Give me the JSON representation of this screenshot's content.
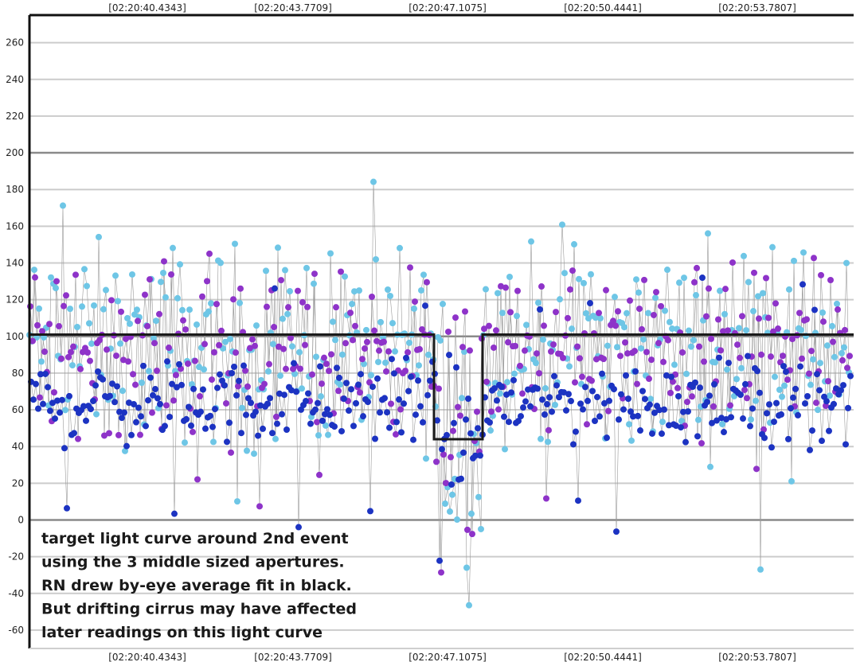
{
  "chart_data": {
    "type": "scatter",
    "title": "",
    "xlabel": "",
    "ylabel": "",
    "x_tick_labels": [
      "[02:20:40.4343]",
      "[02:20:43.7709]",
      "[02:20:47.1075]",
      "[02:20:50.4441]",
      "[02:20:53.7807]"
    ],
    "y_ticks": [
      260,
      240,
      220,
      200,
      180,
      160,
      140,
      120,
      100,
      80,
      60,
      40,
      20,
      0,
      -20,
      -40,
      -60
    ],
    "ylim": [
      -70,
      275
    ],
    "grid": true,
    "annotation": [
      "target light curve around 2nd event",
      "using the 3 middle sized apertures.",
      "RN drew by-eye average fit in black.",
      "But drifting cirrus may have affected",
      "later readings on this light curve"
    ],
    "series_colors": {
      "sky": "#6ec6e6",
      "purple": "#8e33c9",
      "blue": "#1c33c2",
      "fit": "#1a1a1a",
      "connector": "#9a9a9a"
    },
    "fit_line": [
      {
        "x": 0,
        "y": 101
      },
      {
        "x": 508,
        "y": 101
      },
      {
        "x": 508,
        "y": 44
      },
      {
        "x": 569,
        "y": 44
      },
      {
        "x": 569,
        "y": 101
      },
      {
        "x": 1035,
        "y": 101
      }
    ]
  }
}
